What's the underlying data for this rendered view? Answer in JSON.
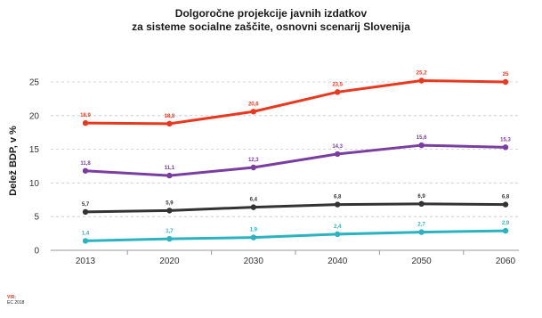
{
  "title": {
    "line1": "Dolgoročne projekcije javnih izdatkov",
    "line2": "za sisteme socialne zaščite, osnovni scenarij Slovenija"
  },
  "source": {
    "label": "VIR:",
    "text": "EC 2018"
  },
  "chart_data": {
    "type": "line",
    "title": "Dolgoročne projekcije javnih izdatkov za sisteme socialne zaščite, osnovni scenarij Slovenija",
    "xlabel": "",
    "ylabel": "Delež BDP, v %",
    "categories": [
      "2013",
      "2020",
      "2030",
      "2040",
      "2050",
      "2060"
    ],
    "ylim": [
      0,
      25
    ],
    "yticks": [
      0,
      5,
      10,
      15,
      20,
      25
    ],
    "grid": true,
    "legend": "none",
    "series": [
      {
        "color": "#e8391f",
        "values": [
          18.9,
          18.8,
          20.6,
          23.5,
          25.2,
          25.0
        ],
        "labels": [
          "18,9",
          "18,8",
          "20,6",
          "23,5",
          "25,2",
          "25"
        ]
      },
      {
        "color": "#7a3da0",
        "values": [
          11.8,
          11.1,
          12.3,
          14.3,
          15.6,
          15.3
        ],
        "labels": [
          "11,8",
          "11,1",
          "12,3",
          "14,3",
          "15,6",
          "15,3"
        ]
      },
      {
        "color": "#333333",
        "values": [
          5.7,
          5.9,
          6.4,
          6.8,
          6.9,
          6.8
        ],
        "labels": [
          "5,7",
          "5,9",
          "6,4",
          "6,8",
          "6,9",
          "6,8"
        ]
      },
      {
        "color": "#2bb3c0",
        "values": [
          1.4,
          1.7,
          1.9,
          2.4,
          2.7,
          2.9
        ],
        "labels": [
          "1,4",
          "1,7",
          "1,9",
          "2,4",
          "2,7",
          "2,9"
        ]
      }
    ]
  }
}
